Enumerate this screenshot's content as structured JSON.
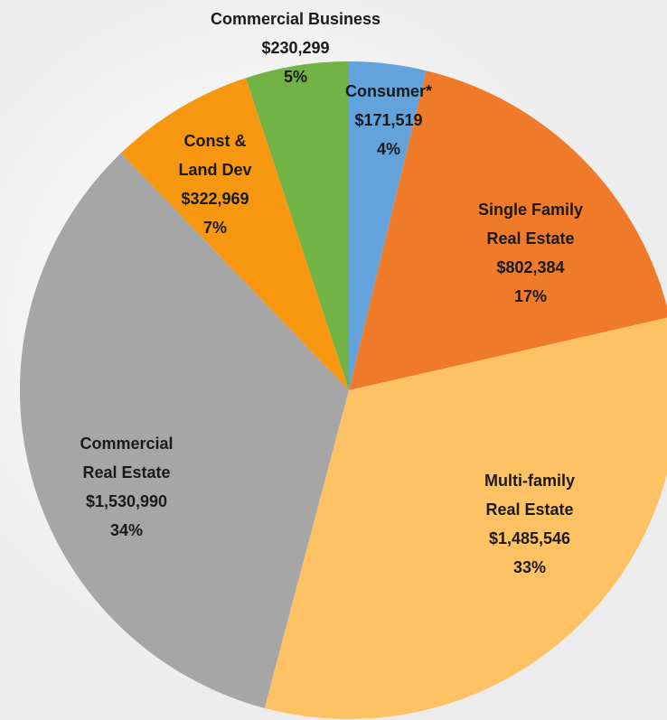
{
  "chart_data": {
    "type": "pie",
    "categories": [
      "Consumer*",
      "Single Family\nReal Estate",
      "Multi-family\nReal Estate",
      "Commercial\nReal Estate",
      "Const &\nLand Dev",
      "Commercial Business"
    ],
    "values": [
      171519,
      802384,
      1485546,
      1530990,
      322969,
      230299
    ],
    "value_labels": [
      "$171,519",
      "$802,384",
      "$1,485,546",
      "$1,530,990",
      "$322,969",
      "$230,299"
    ],
    "percent_labels": [
      "4%",
      "17%",
      "33%",
      "34%",
      "7%",
      "5%"
    ],
    "colors": [
      "#62a3dc",
      "#ef7a2a",
      "#fec264",
      "#a6a6a6",
      "#f7960f",
      "#71b344"
    ]
  }
}
